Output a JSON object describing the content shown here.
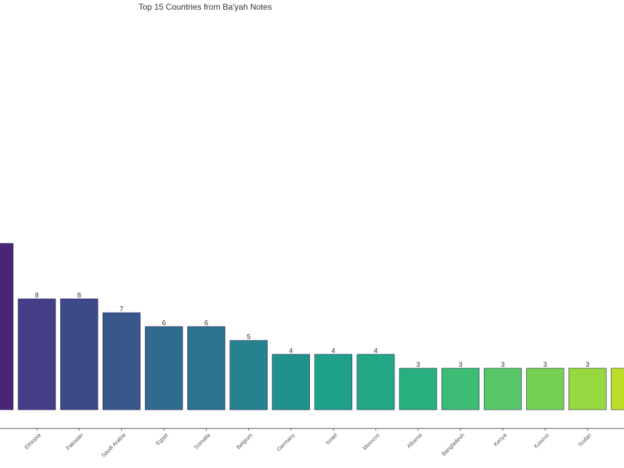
{
  "chart_data": {
    "type": "bar",
    "title": "Top 15 Countries from Ba'yah Notes",
    "xlabel": "",
    "ylabel": "",
    "categories": [
      "",
      "Ethiopia",
      "Pakistan",
      "Saudi Arabia",
      "Egypt",
      "Somalia",
      "Belgium",
      "Germany",
      "Israel",
      "Morocco",
      "Albania",
      "Bangladesh",
      "Kenya",
      "Kosovo",
      "Sudan",
      ""
    ],
    "values": [
      12,
      8,
      8,
      7,
      6,
      6,
      5,
      4,
      4,
      4,
      3,
      3,
      3,
      3,
      3,
      3
    ],
    "data_labels": [
      "",
      "8",
      "8",
      "7",
      "6",
      "6",
      "5",
      "4",
      "4",
      "4",
      "3",
      "3",
      "3",
      "3",
      "3",
      ""
    ],
    "colors": [
      "#482576",
      "#433e85",
      "#3e4989",
      "#38588c",
      "#306a8e",
      "#2c728e",
      "#26828e",
      "#21918c",
      "#1fa088",
      "#22a884",
      "#2ab07f",
      "#3dbc74",
      "#56c667",
      "#75d054",
      "#95d840",
      "#bade28"
    ],
    "grid": false,
    "legend": "none"
  }
}
